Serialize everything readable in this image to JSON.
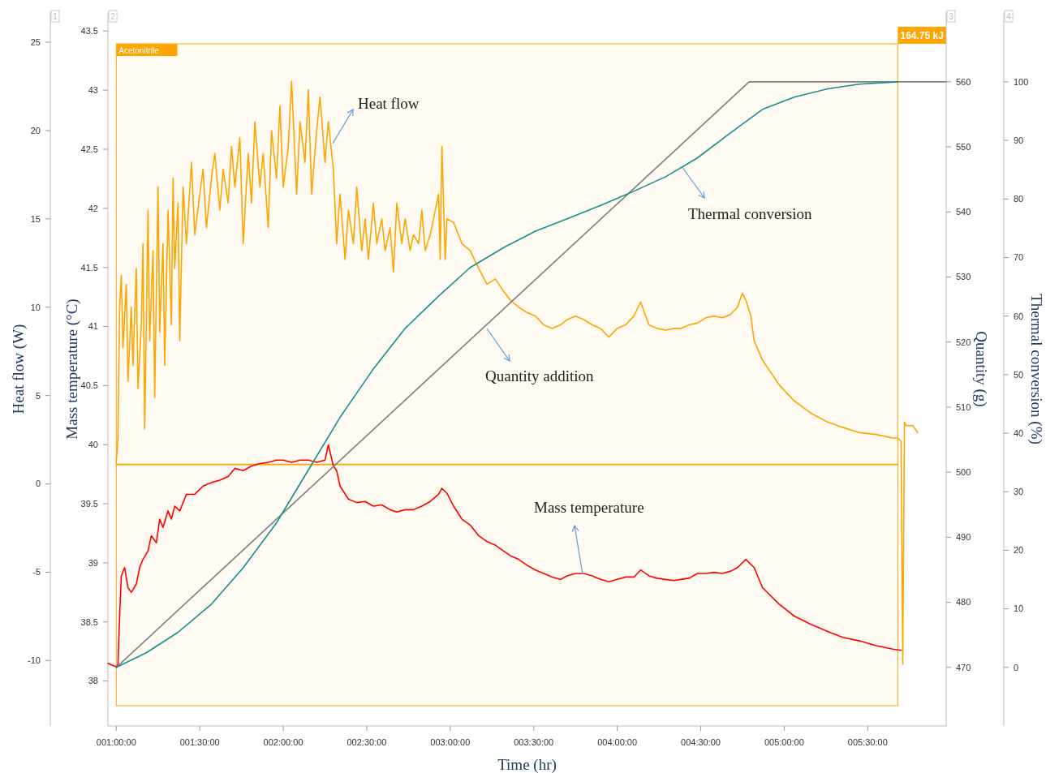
{
  "chart_data": [
    {
      "type": "line",
      "xlabel": "Time (hr)",
      "ylabel": "Heat flow (W)",
      "y2label": "Mass temperature (°C)",
      "y3label": "Quantity (g)",
      "xlim": [
        0.95,
        5.97
      ],
      "xticks": [
        {
          "value": 1,
          "label": "001:00:00"
        },
        {
          "value": 1.5,
          "label": "001:30:00"
        },
        {
          "value": 2,
          "label": "002:00:00"
        },
        {
          "value": 2.5,
          "label": "002:30:00"
        },
        {
          "value": 3,
          "label": "003:00:00"
        },
        {
          "value": 3.5,
          "label": "003:30:00"
        },
        {
          "value": 4,
          "label": "004:00:00"
        },
        {
          "value": 4.5,
          "label": "004:30:00"
        },
        {
          "value": 5,
          "label": "005:00:00"
        },
        {
          "value": 5.5,
          "label": "005:30:00"
        }
      ],
      "ylim": [
        -13.7,
        26.7
      ],
      "yticks": [
        -10,
        -5,
        0,
        5,
        10,
        15,
        20,
        25
      ],
      "y2lim": [
        37.62,
        43.66
      ],
      "y2ticks": [
        38,
        38.5,
        39,
        39.5,
        40,
        40.5,
        41,
        41.5,
        42,
        42.5,
        43,
        43.5
      ],
      "y3lim": [
        461.0,
        570.7
      ],
      "y3ticks": [
        470,
        480,
        490,
        500,
        510,
        520,
        530,
        540,
        550,
        560
      ],
      "bands": [
        {
          "axis": "x",
          "from": 1.0,
          "to": 5.68,
          "label": "Acetonitrile",
          "color": "#ffa500"
        }
      ],
      "annotations": [
        "164.75 kJ",
        "1",
        "2",
        "3"
      ],
      "series": [
        {
          "name": "Heat flow",
          "color": "#ffa500",
          "axis": "y",
          "x": [
            1.0,
            1.01,
            1.02,
            1.03,
            1.04,
            1.06,
            1.07,
            1.09,
            1.1,
            1.12,
            1.13,
            1.15,
            1.16,
            1.17,
            1.19,
            1.2,
            1.22,
            1.23,
            1.25,
            1.26,
            1.28,
            1.29,
            1.31,
            1.33,
            1.34,
            1.35,
            1.37,
            1.38,
            1.4,
            1.42,
            1.45,
            1.47,
            1.5,
            1.52,
            1.54,
            1.57,
            1.59,
            1.62,
            1.64,
            1.67,
            1.69,
            1.71,
            1.74,
            1.76,
            1.79,
            1.81,
            1.83,
            1.86,
            1.88,
            1.91,
            1.93,
            1.96,
            1.98,
            2.0,
            2.03,
            2.05,
            2.08,
            2.1,
            2.13,
            2.15,
            2.17,
            2.2,
            2.22,
            2.25,
            2.27,
            2.3,
            2.32,
            2.34,
            2.37,
            2.39,
            2.42,
            2.44,
            2.47,
            2.49,
            2.51,
            2.54,
            2.56,
            2.59,
            2.61,
            2.64,
            2.66,
            2.68,
            2.71,
            2.73,
            2.76,
            2.78,
            2.81,
            2.83,
            2.85,
            2.88,
            2.9,
            2.93,
            2.94,
            2.95,
            2.97,
            2.98,
            3.02,
            3.07,
            3.12,
            3.17,
            3.22,
            3.27,
            3.32,
            3.36,
            3.41,
            3.46,
            3.51,
            3.56,
            3.61,
            3.66,
            3.7,
            3.75,
            3.8,
            3.85,
            3.9,
            3.95,
            4.0,
            4.05,
            4.1,
            4.14,
            4.17,
            4.19,
            4.24,
            4.29,
            4.34,
            4.38,
            4.43,
            4.48,
            4.53,
            4.58,
            4.63,
            4.68,
            4.72,
            4.75,
            4.77,
            4.8,
            4.82,
            4.87,
            4.97,
            5.06,
            5.16,
            5.26,
            5.35,
            5.45,
            5.55,
            5.65,
            5.68,
            5.7,
            5.71,
            5.72,
            5.73,
            5.77,
            5.8
          ],
          "values": [
            1.2,
            2.6,
            10.0,
            11.8,
            7.7,
            11.3,
            5.8,
            10.0,
            6.7,
            12.2,
            5.4,
            9.0,
            13.6,
            3.1,
            15.5,
            8.1,
            13.2,
            4.9,
            16.8,
            8.6,
            13.6,
            6.7,
            15.5,
            9.0,
            17.3,
            12.2,
            15.9,
            8.1,
            16.8,
            13.6,
            18.2,
            14.1,
            16.4,
            17.8,
            14.5,
            17.3,
            18.7,
            15.5,
            17.8,
            15.9,
            19.1,
            16.8,
            19.6,
            13.6,
            18.7,
            15.9,
            20.5,
            16.8,
            18.7,
            14.5,
            20.0,
            17.3,
            21.4,
            16.8,
            19.1,
            22.8,
            16.4,
            20.5,
            18.2,
            22.3,
            16.4,
            20.0,
            21.9,
            18.2,
            20.5,
            17.8,
            13.6,
            16.4,
            12.7,
            15.5,
            13.6,
            16.8,
            13.2,
            15.0,
            12.7,
            15.9,
            13.6,
            15.0,
            13.2,
            14.5,
            12.0,
            15.9,
            13.6,
            15.0,
            13.2,
            14.1,
            13.6,
            15.5,
            13.2,
            14.1,
            15.0,
            16.4,
            12.7,
            19.1,
            12.7,
            15.0,
            14.8,
            13.6,
            13.2,
            12.2,
            11.3,
            11.6,
            10.9,
            10.4,
            10.0,
            9.7,
            9.5,
            9.0,
            8.8,
            9.0,
            9.3,
            9.5,
            9.3,
            9.0,
            8.8,
            8.3,
            8.8,
            9.0,
            9.5,
            10.3,
            9.5,
            9.0,
            8.8,
            8.7,
            8.8,
            8.8,
            9.0,
            9.1,
            9.4,
            9.5,
            9.4,
            9.6,
            10.0,
            10.8,
            10.4,
            9.5,
            8.1,
            7.0,
            5.6,
            4.7,
            4.0,
            3.5,
            3.2,
            2.9,
            2.8,
            2.6,
            2.6,
            2.4,
            -10.2,
            3.5,
            3.3,
            3.3,
            2.9
          ]
        },
        {
          "color": "#ffa500",
          "axis": "y",
          "x": [
            1.0,
            5.68
          ],
          "values": [
            1.1,
            1.1
          ]
        },
        {
          "name": "Mass temperature",
          "color": "#ff0000",
          "axis": "y2",
          "x": [
            0.95,
            1.0,
            1.01,
            1.02,
            1.03,
            1.05,
            1.07,
            1.09,
            1.12,
            1.14,
            1.16,
            1.19,
            1.21,
            1.24,
            1.26,
            1.28,
            1.31,
            1.33,
            1.35,
            1.38,
            1.42,
            1.47,
            1.52,
            1.57,
            1.62,
            1.67,
            1.71,
            1.76,
            1.81,
            1.86,
            1.91,
            1.96,
            2.0,
            2.05,
            2.1,
            2.15,
            2.2,
            2.25,
            2.27,
            2.3,
            2.32,
            2.34,
            2.39,
            2.44,
            2.49,
            2.54,
            2.59,
            2.64,
            2.68,
            2.73,
            2.78,
            2.83,
            2.88,
            2.93,
            2.95,
            2.98,
            3.02,
            3.07,
            3.12,
            3.17,
            3.22,
            3.27,
            3.32,
            3.36,
            3.41,
            3.46,
            3.51,
            3.56,
            3.61,
            3.66,
            3.7,
            3.75,
            3.8,
            3.85,
            3.9,
            3.95,
            4.0,
            4.05,
            4.1,
            4.14,
            4.19,
            4.24,
            4.29,
            4.34,
            4.38,
            4.43,
            4.48,
            4.53,
            4.58,
            4.63,
            4.68,
            4.72,
            4.77,
            4.82,
            4.87,
            4.97,
            5.06,
            5.16,
            5.26,
            5.35,
            5.45,
            5.55,
            5.65,
            5.7
          ],
          "values": [
            38.15,
            38.12,
            38.14,
            38.55,
            38.89,
            38.96,
            38.79,
            38.75,
            38.82,
            38.96,
            39.03,
            39.1,
            39.23,
            39.17,
            39.37,
            39.3,
            39.44,
            39.37,
            39.48,
            39.44,
            39.58,
            39.58,
            39.65,
            39.68,
            39.7,
            39.73,
            39.8,
            39.78,
            39.82,
            39.84,
            39.85,
            39.87,
            39.87,
            39.85,
            39.87,
            39.87,
            39.85,
            39.87,
            40.0,
            39.82,
            39.78,
            39.65,
            39.54,
            39.51,
            39.52,
            39.48,
            39.49,
            39.45,
            39.43,
            39.45,
            39.45,
            39.48,
            39.52,
            39.58,
            39.63,
            39.59,
            39.48,
            39.37,
            39.32,
            39.23,
            39.18,
            39.15,
            39.1,
            39.06,
            39.03,
            38.98,
            38.94,
            38.91,
            38.88,
            38.86,
            38.89,
            38.91,
            38.91,
            38.89,
            38.86,
            38.84,
            38.86,
            38.88,
            38.88,
            38.94,
            38.89,
            38.87,
            38.86,
            38.85,
            38.86,
            38.87,
            38.91,
            38.91,
            38.92,
            38.91,
            38.93,
            38.96,
            39.03,
            38.96,
            38.79,
            38.65,
            38.55,
            38.48,
            38.42,
            38.37,
            38.34,
            38.3,
            38.27,
            38.26
          ]
        },
        {
          "name": "Quantity addition",
          "color": "#808080",
          "axis": "y3",
          "x": [
            1.0,
            4.79,
            5.97
          ],
          "values": [
            470,
            560,
            560
          ]
        }
      ]
    },
    {
      "type": "line",
      "ylabel": "Thermal conversion (%)",
      "tick_labels": "y",
      "xlim": [
        0.95,
        5.97
      ],
      "ylim": [
        -10,
        111.9
      ],
      "yticks": [
        0,
        10,
        20,
        30,
        40,
        50,
        60,
        70,
        80,
        90,
        100
      ],
      "annotations": [
        "4"
      ],
      "series": [
        {
          "name": "Thermal conversion",
          "color": "#139090",
          "x": [
            1.0,
            1.18,
            1.37,
            1.57,
            1.76,
            1.96,
            2.15,
            2.34,
            2.54,
            2.73,
            2.93,
            3.12,
            3.32,
            3.51,
            3.7,
            3.9,
            4.09,
            4.29,
            4.48,
            4.67,
            4.87,
            5.06,
            5.26,
            5.45,
            5.68
          ],
          "values": [
            0,
            2.5,
            6.0,
            10.8,
            17.0,
            24.7,
            33.7,
            42.7,
            51.0,
            57.9,
            63.4,
            68.3,
            71.7,
            74.5,
            76.6,
            78.9,
            81.2,
            83.8,
            87.0,
            91.1,
            95.3,
            97.4,
            98.8,
            99.6,
            100
          ]
        }
      ]
    }
  ]
}
